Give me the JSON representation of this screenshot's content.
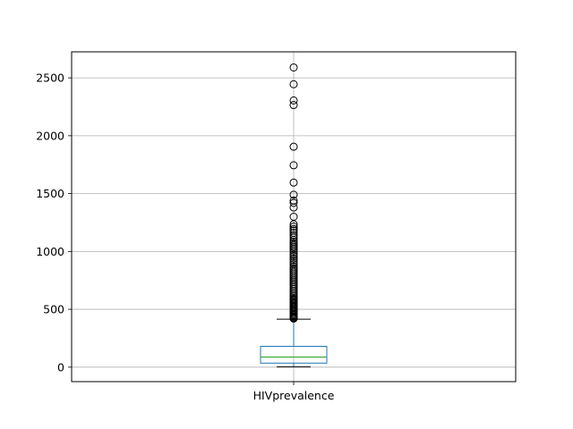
{
  "chart_data": {
    "type": "boxplot",
    "title": "",
    "xlabel": "",
    "ylabel": "",
    "categories": [
      "HIVprevalence"
    ],
    "ylim": [
      -125,
      2725
    ],
    "yticks": [
      0,
      500,
      1000,
      1500,
      2000,
      2500
    ],
    "ytick_labels": [
      "0",
      "500",
      "1000",
      "1500",
      "2000",
      "2500"
    ],
    "grid": true,
    "box": {
      "whisker_low": 3,
      "q1": 35,
      "median": 87,
      "q3": 180,
      "whisker_high": 415
    },
    "outliers": [
      2590,
      2445,
      2305,
      2265,
      1905,
      1745,
      1595,
      1490,
      1440,
      1420,
      1380,
      1300,
      1235,
      1215,
      1195,
      1180,
      1160,
      1140,
      1120,
      1100,
      1085,
      1070,
      1055,
      1040,
      1025,
      1010,
      995,
      975,
      960,
      940,
      925,
      905,
      890,
      870,
      855,
      840,
      825,
      810,
      795,
      780,
      765,
      750,
      735,
      720,
      705,
      690,
      675,
      660,
      645,
      630,
      615,
      600,
      590,
      580,
      570,
      560,
      550,
      540,
      530,
      520,
      510,
      500,
      490,
      480,
      470,
      460,
      450,
      440,
      432,
      425,
      420
    ],
    "colors": {
      "box": "#1f77b4",
      "median": "#2ca02c",
      "whisker": "#1f77b4",
      "cap": "#000000",
      "outlier": "#000000",
      "grid": "#b0b0b0"
    }
  }
}
